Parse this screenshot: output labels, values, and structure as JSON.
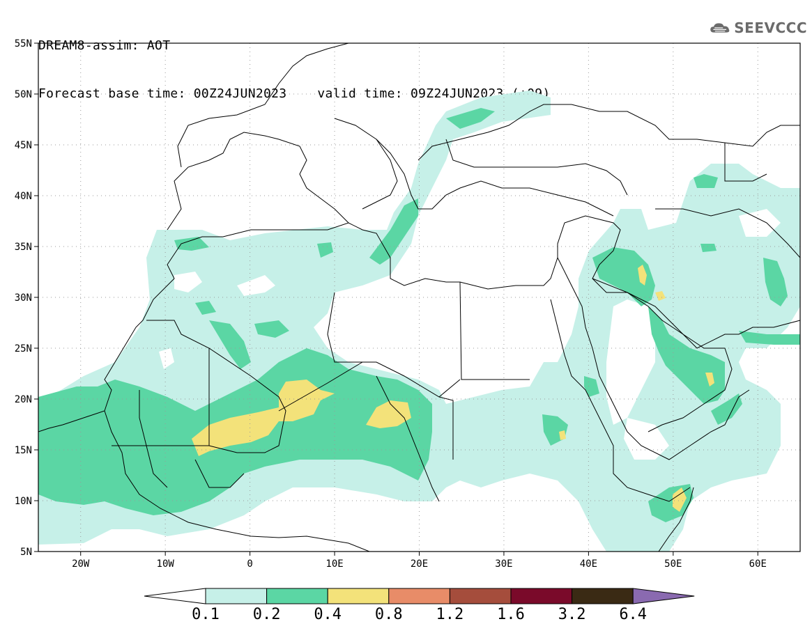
{
  "header": {
    "model_line": "DREAM8-assim: AOT",
    "base_time": "Forecast base time: 00Z24JUN2023",
    "valid_time": "valid time: 09Z24JUN2023 (+09)"
  },
  "logo": {
    "text": "SEEVCCC",
    "icon": "cloud-icon"
  },
  "map": {
    "lon_range": [
      -25,
      65
    ],
    "lat_range": [
      5,
      55
    ],
    "lat_ticks": [
      "5N",
      "10N",
      "15N",
      "20N",
      "25N",
      "30N",
      "35N",
      "40N",
      "45N",
      "50N",
      "55N"
    ],
    "lon_ticks": [
      "20W",
      "10W",
      "0",
      "10E",
      "20E",
      "30E",
      "40E",
      "50E",
      "60E"
    ],
    "grid": "dotted",
    "background_color": "#ffffff"
  },
  "colorbar": {
    "levels": [
      "0.1",
      "0.2",
      "0.4",
      "0.8",
      "1.2",
      "1.6",
      "3.2",
      "6.4"
    ],
    "colors": [
      "#ffffff",
      "#c6f0e8",
      "#5bd6a4",
      "#f3e27a",
      "#e88c68",
      "#a54d3c",
      "#7a0a2a",
      "#3a2a14",
      "#8a6ab0"
    ]
  }
}
